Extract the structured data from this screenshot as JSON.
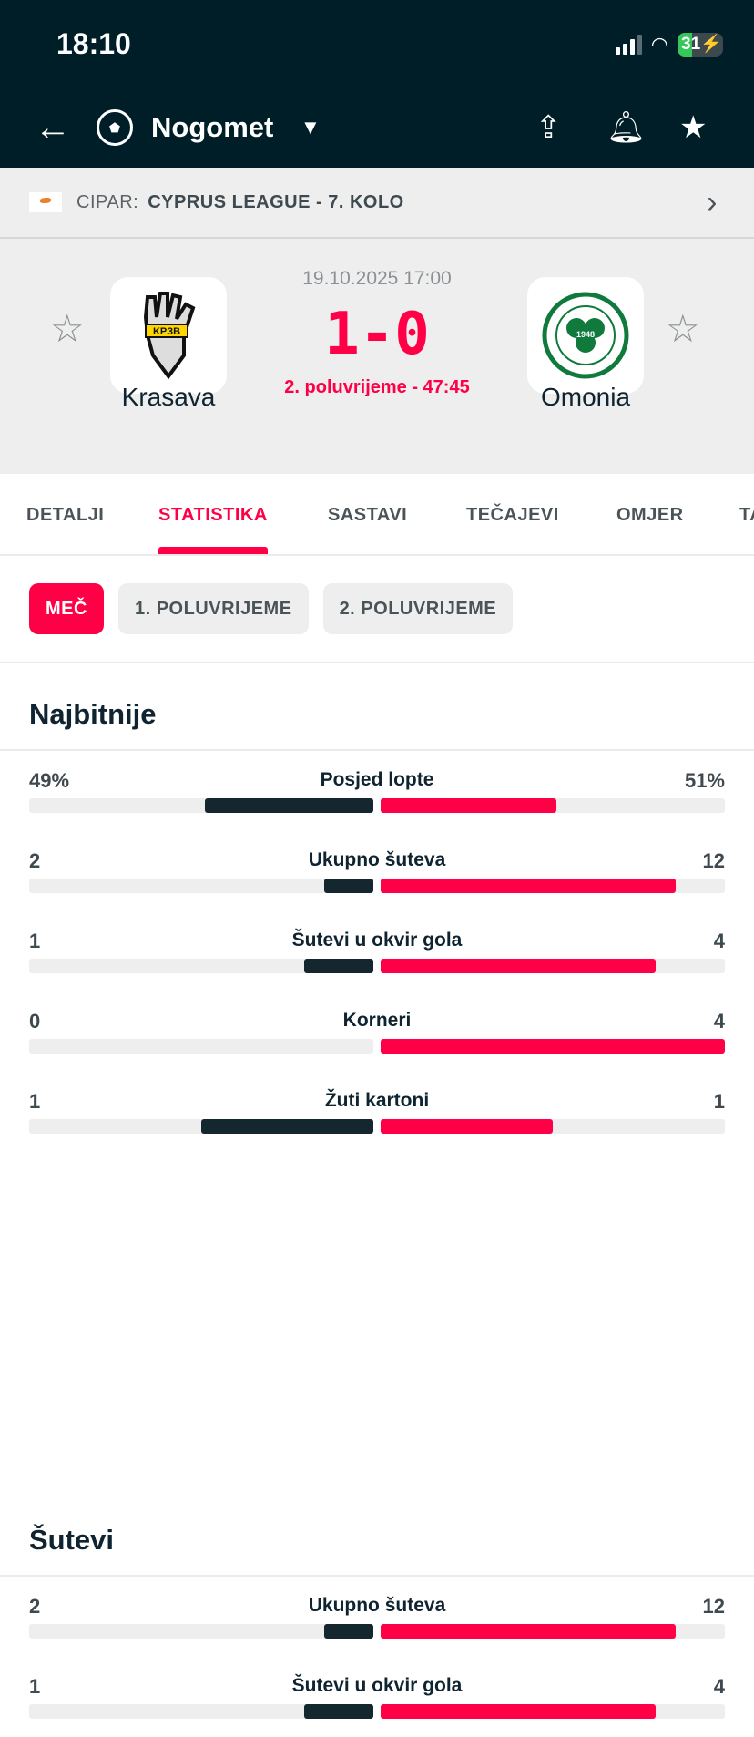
{
  "status_bar": {
    "time": "18:10",
    "battery": "31"
  },
  "nav": {
    "title": "Nogomet",
    "back": "←",
    "caret": "▼"
  },
  "league": {
    "country": "CIPAR:",
    "name": "CYPRUS LEAGUE - 7. KOLO"
  },
  "match": {
    "date": "19.10.2025 17:00",
    "score": "1-0",
    "period": "2. poluvrijeme - 47:45",
    "home": "Krasava",
    "away": "Omonia",
    "home_logo_text": "KPЗB",
    "away_logo_text": "1948"
  },
  "tabs": [
    "DETALJI",
    "STATISTIKA",
    "SASTAVI",
    "TEČAJEVI",
    "OMJER",
    "TA"
  ],
  "chips": [
    "MEČ",
    "1. POLUVRIJEME",
    "2. POLUVRIJEME"
  ],
  "colors": {
    "home": "#14262e",
    "away": "#ff0046",
    "accent": "#ff0046"
  },
  "sections": [
    {
      "title": "Najbitnije",
      "rows": [
        {
          "label": "Posjed lopte",
          "home": "49%",
          "away": "51%",
          "hv": 49,
          "av": 51
        },
        {
          "label": "Ukupno šuteva",
          "home": "2",
          "away": "12",
          "hv": 2,
          "av": 12
        },
        {
          "label": "Šutevi u okvir gola",
          "home": "1",
          "away": "4",
          "hv": 1,
          "av": 4
        },
        {
          "label": "Korneri",
          "home": "0",
          "away": "4",
          "hv": 0,
          "av": 4
        },
        {
          "label": "Žuti kartoni",
          "home": "1",
          "away": "1",
          "hv": 1,
          "av": 1
        }
      ]
    },
    {
      "title": "Šutevi",
      "rows": [
        {
          "label": "Ukupno šuteva",
          "home": "2",
          "away": "12",
          "hv": 2,
          "av": 12
        },
        {
          "label": "Šutevi u okvir gola",
          "home": "1",
          "away": "4",
          "hv": 1,
          "av": 4
        }
      ]
    }
  ]
}
